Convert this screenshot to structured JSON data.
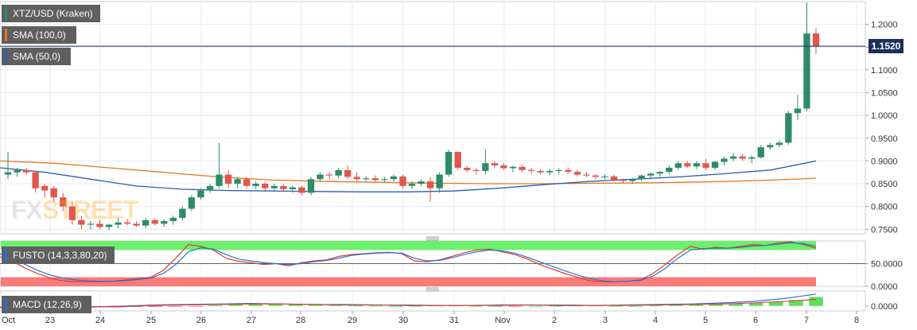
{
  "window": {
    "title": "XTZ/USD (Kraken)"
  },
  "legend": {
    "pair": "XTZ/USD (Kraken)",
    "sma100": "SMA (100,0)",
    "sma50": "SMA (50,0)"
  },
  "indicators": {
    "fusto_label": "FUSTO (14,3,3,80,20)",
    "macd_label": "MACD (12,26,9)"
  },
  "watermark": {
    "part1": "FX",
    "part2": "STREET"
  },
  "current_price_label": "1.1520",
  "colors": {
    "up": "#2e8b6a",
    "down": "#e0574c",
    "sma100": "#e8751a",
    "sma50": "#2a5db0",
    "price_line": "#1e2f5c",
    "fusto_k": "#e03a2a",
    "fusto_d": "#2a6fd6",
    "overbought_zone": "#6cf06c",
    "oversold_zone": "#fb7a7a"
  },
  "chart_data": [
    {
      "type": "candlestick",
      "title": "XTZ/USD (Kraken)",
      "x_labels": [
        "Oct",
        "23",
        "24",
        "25",
        "26",
        "27",
        "28",
        "29",
        "30",
        "31",
        "Nov",
        "2",
        "3",
        "4",
        "5",
        "6",
        "7",
        "8"
      ],
      "y_ticks": [
        "1.2000",
        "1.1500",
        "1.1000",
        "1.0500",
        "1.0000",
        "0.9500",
        "0.9000",
        "0.8500",
        "0.8000",
        "0.7500"
      ],
      "ylim": [
        0.74,
        1.25
      ],
      "current_price": 1.152,
      "ohlc": [
        [
          0.87,
          0.92,
          0.86,
          0.875
        ],
        [
          0.875,
          0.885,
          0.865,
          0.88
        ],
        [
          0.88,
          0.885,
          0.87,
          0.875
        ],
        [
          0.875,
          0.878,
          0.83,
          0.84
        ],
        [
          0.845,
          0.85,
          0.82,
          0.835
        ],
        [
          0.84,
          0.845,
          0.81,
          0.82
        ],
        [
          0.82,
          0.83,
          0.79,
          0.8
        ],
        [
          0.8,
          0.81,
          0.76,
          0.77
        ],
        [
          0.77,
          0.78,
          0.75,
          0.76
        ],
        [
          0.76,
          0.768,
          0.75,
          0.762
        ],
        [
          0.762,
          0.77,
          0.75,
          0.755
        ],
        [
          0.755,
          0.762,
          0.748,
          0.76
        ],
        [
          0.76,
          0.775,
          0.752,
          0.765
        ],
        [
          0.765,
          0.772,
          0.758,
          0.762
        ],
        [
          0.762,
          0.768,
          0.755,
          0.758
        ],
        [
          0.758,
          0.775,
          0.752,
          0.77
        ],
        [
          0.77,
          0.775,
          0.758,
          0.762
        ],
        [
          0.762,
          0.772,
          0.755,
          0.768
        ],
        [
          0.768,
          0.78,
          0.76,
          0.775
        ],
        [
          0.775,
          0.8,
          0.77,
          0.795
        ],
        [
          0.795,
          0.825,
          0.79,
          0.82
        ],
        [
          0.82,
          0.84,
          0.815,
          0.835
        ],
        [
          0.835,
          0.85,
          0.83,
          0.845
        ],
        [
          0.845,
          0.94,
          0.84,
          0.87
        ],
        [
          0.87,
          0.88,
          0.84,
          0.85
        ],
        [
          0.85,
          0.865,
          0.84,
          0.86
        ],
        [
          0.86,
          0.865,
          0.84,
          0.845
        ],
        [
          0.845,
          0.855,
          0.838,
          0.85
        ],
        [
          0.85,
          0.855,
          0.835,
          0.84
        ],
        [
          0.84,
          0.85,
          0.835,
          0.845
        ],
        [
          0.845,
          0.85,
          0.835,
          0.838
        ],
        [
          0.838,
          0.845,
          0.83,
          0.842
        ],
        [
          0.842,
          0.846,
          0.825,
          0.83
        ],
        [
          0.83,
          0.865,
          0.825,
          0.86
        ],
        [
          0.86,
          0.875,
          0.855,
          0.87
        ],
        [
          0.87,
          0.875,
          0.86,
          0.868
        ],
        [
          0.868,
          0.885,
          0.862,
          0.88
        ],
        [
          0.88,
          0.89,
          0.86,
          0.865
        ],
        [
          0.865,
          0.875,
          0.855,
          0.86
        ],
        [
          0.86,
          0.866,
          0.855,
          0.862
        ],
        [
          0.862,
          0.868,
          0.855,
          0.858
        ],
        [
          0.858,
          0.865,
          0.852,
          0.86
        ],
        [
          0.86,
          0.87,
          0.855,
          0.866
        ],
        [
          0.866,
          0.87,
          0.84,
          0.845
        ],
        [
          0.845,
          0.855,
          0.838,
          0.85
        ],
        [
          0.85,
          0.86,
          0.845,
          0.855
        ],
        [
          0.855,
          0.865,
          0.81,
          0.84
        ],
        [
          0.84,
          0.875,
          0.83,
          0.87
        ],
        [
          0.87,
          0.925,
          0.865,
          0.92
        ],
        [
          0.92,
          0.92,
          0.88,
          0.885
        ],
        [
          0.885,
          0.89,
          0.875,
          0.88
        ],
        [
          0.88,
          0.885,
          0.87,
          0.878
        ],
        [
          0.878,
          0.925,
          0.87,
          0.895
        ],
        [
          0.895,
          0.9,
          0.885,
          0.89
        ],
        [
          0.89,
          0.895,
          0.88,
          0.884
        ],
        [
          0.884,
          0.89,
          0.875,
          0.887
        ],
        [
          0.887,
          0.892,
          0.875,
          0.88
        ],
        [
          0.88,
          0.885,
          0.872,
          0.878
        ],
        [
          0.878,
          0.882,
          0.87,
          0.875
        ],
        [
          0.875,
          0.882,
          0.868,
          0.878
        ],
        [
          0.878,
          0.884,
          0.87,
          0.88
        ],
        [
          0.88,
          0.886,
          0.872,
          0.876
        ],
        [
          0.876,
          0.88,
          0.866,
          0.87
        ],
        [
          0.87,
          0.876,
          0.864,
          0.868
        ],
        [
          0.868,
          0.872,
          0.86,
          0.865
        ],
        [
          0.865,
          0.87,
          0.86,
          0.866
        ],
        [
          0.866,
          0.87,
          0.855,
          0.858
        ],
        [
          0.858,
          0.862,
          0.852,
          0.856
        ],
        [
          0.856,
          0.862,
          0.85,
          0.86
        ],
        [
          0.86,
          0.87,
          0.855,
          0.868
        ],
        [
          0.868,
          0.875,
          0.86,
          0.872
        ],
        [
          0.872,
          0.878,
          0.865,
          0.876
        ],
        [
          0.876,
          0.89,
          0.87,
          0.885
        ],
        [
          0.885,
          0.9,
          0.88,
          0.895
        ],
        [
          0.895,
          0.9,
          0.885,
          0.888
        ],
        [
          0.888,
          0.9,
          0.882,
          0.895
        ],
        [
          0.895,
          0.905,
          0.88,
          0.885
        ],
        [
          0.885,
          0.9,
          0.88,
          0.898
        ],
        [
          0.898,
          0.91,
          0.89,
          0.905
        ],
        [
          0.905,
          0.918,
          0.9,
          0.91
        ],
        [
          0.91,
          0.915,
          0.9,
          0.905
        ],
        [
          0.905,
          0.912,
          0.895,
          0.908
        ],
        [
          0.908,
          0.935,
          0.905,
          0.93
        ],
        [
          0.93,
          0.94,
          0.925,
          0.935
        ],
        [
          0.935,
          0.945,
          0.93,
          0.94
        ],
        [
          0.94,
          1.01,
          0.935,
          1.005
        ],
        [
          1.005,
          1.045,
          0.99,
          1.015
        ],
        [
          1.015,
          1.248,
          1.01,
          1.18
        ],
        [
          1.18,
          1.192,
          1.135,
          1.152
        ]
      ],
      "sma100": [
        0.9,
        0.895,
        0.885,
        0.875,
        0.865,
        0.858,
        0.855,
        0.853,
        0.851,
        0.85,
        0.85,
        0.851,
        0.852,
        0.854,
        0.857,
        0.862
      ],
      "sma50": [
        0.885,
        0.875,
        0.86,
        0.845,
        0.838,
        0.835,
        0.834,
        0.833,
        0.832,
        0.832,
        0.834,
        0.84,
        0.848,
        0.855,
        0.86,
        0.865,
        0.872,
        0.88,
        0.9
      ]
    },
    {
      "type": "line",
      "title": "FUSTO (14,3,3,80,20)",
      "y_ticks": [
        "50.0000",
        "0.0000"
      ],
      "ylim": [
        0,
        100
      ],
      "zones": {
        "overbought": 80,
        "oversold": 20
      },
      "series": [
        {
          "values": [
            65,
            55,
            40,
            28,
            18,
            12,
            10,
            10,
            10,
            11,
            14,
            17,
            20,
            35,
            62,
            92,
            88,
            80,
            62,
            55,
            52,
            48,
            50,
            45,
            52,
            56,
            58,
            66,
            70,
            72,
            74,
            75,
            72,
            56,
            54,
            58,
            66,
            74,
            80,
            82,
            76,
            70,
            60,
            48,
            38,
            28,
            20,
            12,
            10,
            10,
            11,
            14,
            28,
            48,
            70,
            88,
            82,
            86,
            84,
            88,
            92,
            90,
            96,
            98,
            92,
            84
          ]
        },
        {
          "values": [
            72,
            62,
            48,
            35,
            25,
            18,
            14,
            12,
            11,
            11,
            12,
            15,
            18,
            28,
            48,
            76,
            85,
            82,
            70,
            60,
            56,
            52,
            50,
            48,
            50,
            54,
            57,
            62,
            68,
            71,
            73,
            74,
            73,
            62,
            56,
            57,
            63,
            70,
            76,
            80,
            78,
            73,
            64,
            54,
            44,
            34,
            25,
            17,
            12,
            10,
            11,
            13,
            22,
            40,
            62,
            80,
            83,
            84,
            84,
            86,
            89,
            90,
            93,
            96,
            94,
            88
          ]
        }
      ]
    },
    {
      "type": "bar",
      "title": "MACD (12,26,9)",
      "y_ticks": [
        "0.0000"
      ],
      "ylim": [
        -0.01,
        0.03
      ],
      "histogram": [
        -0.002,
        -0.003,
        -0.002,
        -0.002,
        -0.001,
        -0.001,
        0.001,
        0.003,
        0.004,
        0.005,
        0.004,
        0.003,
        0.002,
        0.001,
        0.0005,
        0.0,
        0.0005,
        0.001,
        0.001,
        0.0005,
        0.0,
        -0.0005,
        0.0,
        0.0005,
        0.001,
        0.001,
        0.0005,
        0.0,
        0.001,
        0.002,
        0.003,
        0.004,
        0.005,
        0.006,
        0.008,
        0.012,
        0.018
      ],
      "series": [
        {
          "values": [
            -0.003,
            -0.004,
            -0.003,
            -0.002,
            0.0,
            0.002,
            0.003,
            0.004,
            0.005,
            0.004,
            0.003,
            0.002,
            0.002,
            0.001,
            0.001,
            0.001,
            0.002,
            0.002,
            0.001,
            0.001,
            0.002,
            0.003,
            0.004,
            0.006,
            0.009,
            0.015,
            0.024
          ]
        },
        {
          "values": [
            -0.002,
            -0.003,
            -0.003,
            -0.002,
            -0.001,
            0.001,
            0.002,
            0.003,
            0.004,
            0.004,
            0.003,
            0.003,
            0.002,
            0.002,
            0.001,
            0.001,
            0.001,
            0.002,
            0.002,
            0.001,
            0.001,
            0.002,
            0.003,
            0.004,
            0.006,
            0.009,
            0.013
          ]
        }
      ]
    }
  ]
}
